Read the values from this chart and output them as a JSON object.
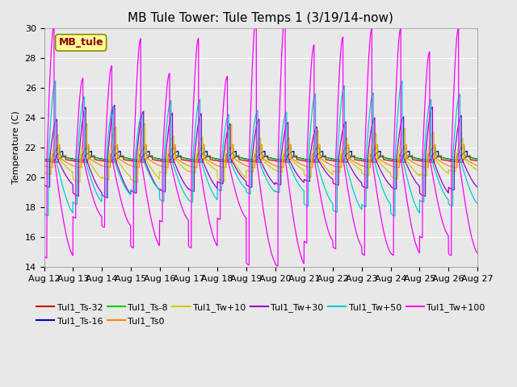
{
  "title": "MB Tule Tower: Tule Temps 1 (3/19/14-now)",
  "ylabel": "Temperature (C)",
  "xlabel": "",
  "ylim": [
    14,
    30
  ],
  "yticks": [
    14,
    16,
    18,
    20,
    22,
    24,
    26,
    28,
    30
  ],
  "xlim_start": 0,
  "xlim_end": 15,
  "x_tick_labels": [
    "Aug 12",
    "Aug 13",
    "Aug 14",
    "Aug 15",
    "Aug 16",
    "Aug 17",
    "Aug 18",
    "Aug 19",
    "Aug 20",
    "Aug 21",
    "Aug 22",
    "Aug 23",
    "Aug 24",
    "Aug 25",
    "Aug 26",
    "Aug 27"
  ],
  "legend_box_label": "MB_tule",
  "series": [
    {
      "label": "Tul1_Ts-32",
      "color": "#cc0000",
      "amplitude": 0.25,
      "phase": 0.5,
      "base": 21.2,
      "period": 1.0
    },
    {
      "label": "Tul1_Ts-16",
      "color": "#0000cc",
      "amplitude": 0.35,
      "phase": 0.4,
      "base": 21.4,
      "period": 1.0
    },
    {
      "label": "Tul1_Ts-8",
      "color": "#00cc00",
      "amplitude": 0.5,
      "phase": 0.3,
      "base": 21.5,
      "period": 1.0
    },
    {
      "label": "Tul1_Ts0",
      "color": "#ff8800",
      "amplitude": 0.9,
      "phase": 0.3,
      "base": 21.3,
      "period": 1.0
    },
    {
      "label": "Tul1_Tw+10",
      "color": "#cccc00",
      "amplitude": 1.8,
      "phase": 0.25,
      "base": 21.3,
      "period": 1.0
    },
    {
      "label": "Tul1_Tw+30",
      "color": "#9900cc",
      "amplitude": 2.8,
      "phase": 0.2,
      "base": 21.3,
      "period": 1.0
    },
    {
      "label": "Tul1_Tw+50",
      "color": "#00cccc",
      "amplitude": 4.0,
      "phase": 0.15,
      "base": 21.3,
      "period": 1.0
    },
    {
      "label": "Tul1_Tw+100",
      "color": "#ff00ff",
      "amplitude": 7.5,
      "phase": 0.1,
      "base": 21.3,
      "period": 1.0
    }
  ],
  "background_color": "#e8e8e8",
  "plot_bg_color": "#e8e8e8",
  "grid_color": "#ffffff",
  "title_fontsize": 11,
  "axis_fontsize": 8,
  "legend_fontsize": 8
}
